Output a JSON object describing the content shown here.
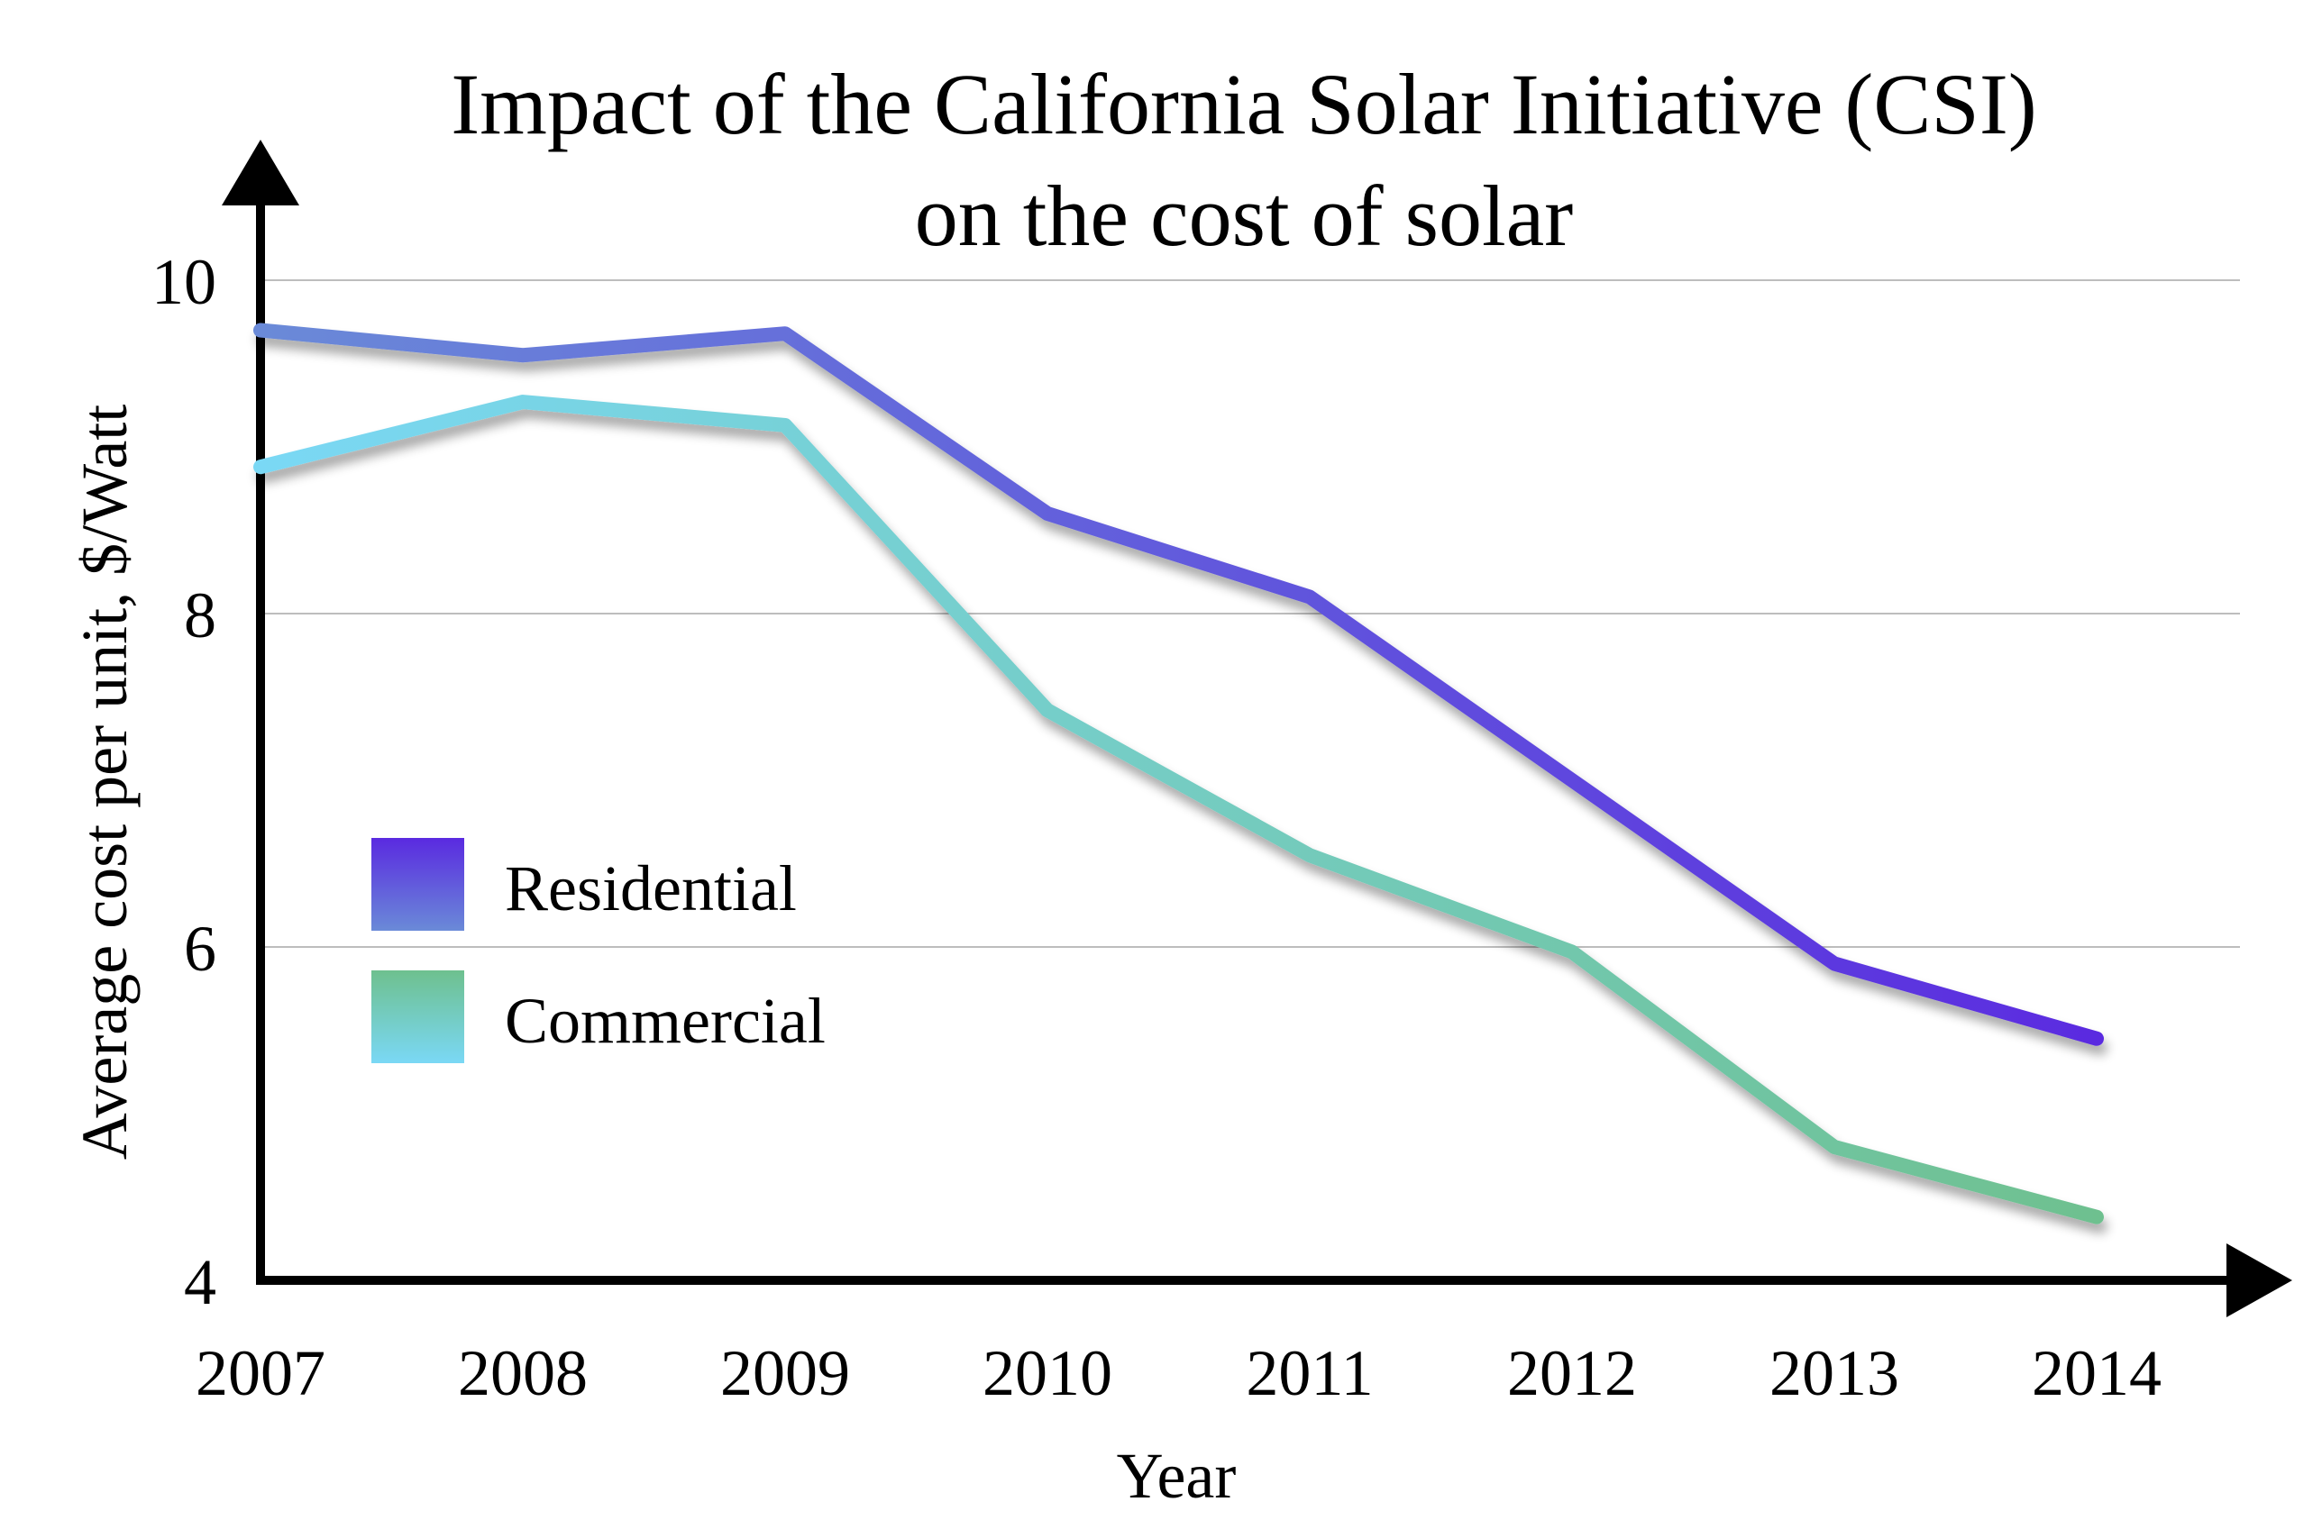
{
  "chart_data": {
    "type": "line",
    "title": [
      "Impact of the California Solar Initiative (CSI)",
      "on the cost of solar"
    ],
    "xlabel": "Year",
    "ylabel": "Average cost per unit, $/Watt",
    "categories": [
      "2007",
      "2008",
      "2009",
      "2010",
      "2011",
      "2012",
      "2013",
      "2014"
    ],
    "ylim": [
      4,
      10
    ],
    "yticks": [
      4,
      6,
      8,
      10
    ],
    "grid": true,
    "legend_position": "left-center",
    "series": [
      {
        "name": "Residential",
        "values": [
          9.7,
          9.55,
          9.68,
          8.6,
          8.1,
          7.0,
          5.9,
          5.45
        ],
        "color_start": "#6a8ad8",
        "color_end": "#5a2ae0"
      },
      {
        "name": "Commercial",
        "values": [
          8.88,
          9.27,
          9.13,
          7.42,
          6.55,
          5.97,
          4.8,
          4.38
        ],
        "color_start": "#7ad8f5",
        "color_end": "#6ec08e"
      }
    ]
  }
}
